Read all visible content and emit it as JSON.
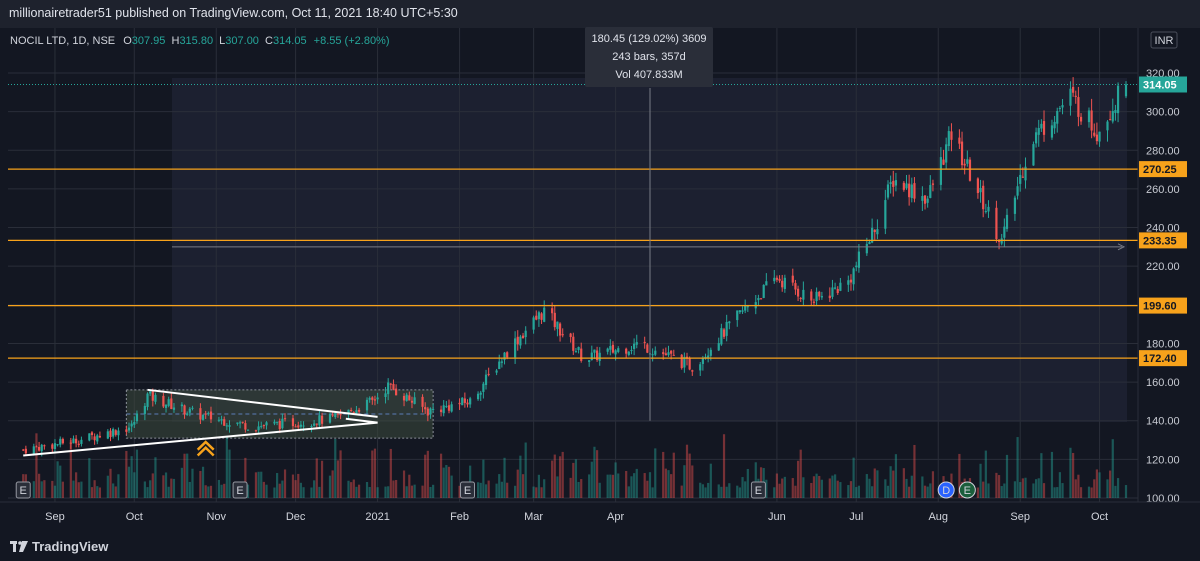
{
  "header": {
    "published_text": "millionairetrader51 published on TradingView.com, Oct 11, 2021 18:40 UTC+5:30"
  },
  "legend": {
    "symbol": "NOCIL LTD, 1D, NSE",
    "open_label": "O",
    "open": "307.95",
    "high_label": "H",
    "high": "315.80",
    "low_label": "L",
    "low": "307.00",
    "close_label": "C",
    "close": "314.05",
    "change": "+8.55 (+2.80%)"
  },
  "measure_info": {
    "line1": "180.45 (129.02%) 3609",
    "line2": "243 bars, 357d",
    "line3": "Vol 407.833M"
  },
  "currency_badge": "INR",
  "footer": {
    "brand": "TradingView"
  },
  "colors": {
    "background": "#131722",
    "up": "#26a69a",
    "down": "#ef5350",
    "level": "#f7a21b",
    "grid": "#2a2e39",
    "last_price": "#26a69a"
  },
  "chart_data": {
    "type": "candlestick",
    "title": "NOCIL LTD, 1D, NSE",
    "xlabel": "",
    "ylabel": "",
    "ylim": [
      97,
      332
    ],
    "y_ticks": [
      100,
      120,
      140,
      160,
      180,
      200,
      220,
      240,
      260,
      280,
      300,
      320
    ],
    "x_ticks": [
      "Sep",
      "Oct",
      "Nov",
      "Dec",
      "2021",
      "Feb",
      "Mar",
      "Apr",
      "Jun",
      "Jul",
      "Aug",
      "Sep",
      "Oct"
    ],
    "last_price": 314.05,
    "horizontal_levels": [
      270.25,
      233.35,
      199.6,
      172.4
    ],
    "measured_move": {
      "change": 180.45,
      "percent": 129.02,
      "bars": 243,
      "days": 357,
      "volume": "407.833M"
    },
    "event_markers": [
      "E",
      "E",
      "E",
      "E",
      "D",
      "E"
    ],
    "price_path_keypoints": [
      {
        "date": "2020-08-20",
        "close": 125
      },
      {
        "date": "2020-09-10",
        "close": 130
      },
      {
        "date": "2020-09-30",
        "close": 137
      },
      {
        "date": "2020-10-06",
        "close": 153
      },
      {
        "date": "2020-10-25",
        "close": 143
      },
      {
        "date": "2020-11-15",
        "close": 137
      },
      {
        "date": "2020-12-15",
        "close": 141
      },
      {
        "date": "2020-12-30",
        "close": 150
      },
      {
        "date": "2021-01-05",
        "close": 158
      },
      {
        "date": "2021-01-20",
        "close": 145
      },
      {
        "date": "2021-02-05",
        "close": 150
      },
      {
        "date": "2021-02-20",
        "close": 178
      },
      {
        "date": "2021-03-05",
        "close": 197
      },
      {
        "date": "2021-03-20",
        "close": 172
      },
      {
        "date": "2021-04-10",
        "close": 180
      },
      {
        "date": "2021-04-30",
        "close": 168
      },
      {
        "date": "2021-05-20",
        "close": 198
      },
      {
        "date": "2021-06-01",
        "close": 214
      },
      {
        "date": "2021-06-15",
        "close": 202
      },
      {
        "date": "2021-06-28",
        "close": 212
      },
      {
        "date": "2021-07-08",
        "close": 240
      },
      {
        "date": "2021-07-15",
        "close": 265
      },
      {
        "date": "2021-07-28",
        "close": 255
      },
      {
        "date": "2021-08-06",
        "close": 288
      },
      {
        "date": "2021-08-25",
        "close": 233
      },
      {
        "date": "2021-09-05",
        "close": 285
      },
      {
        "date": "2021-09-20",
        "close": 308
      },
      {
        "date": "2021-09-30",
        "close": 290
      },
      {
        "date": "2021-10-11",
        "close": 314.05
      }
    ]
  }
}
